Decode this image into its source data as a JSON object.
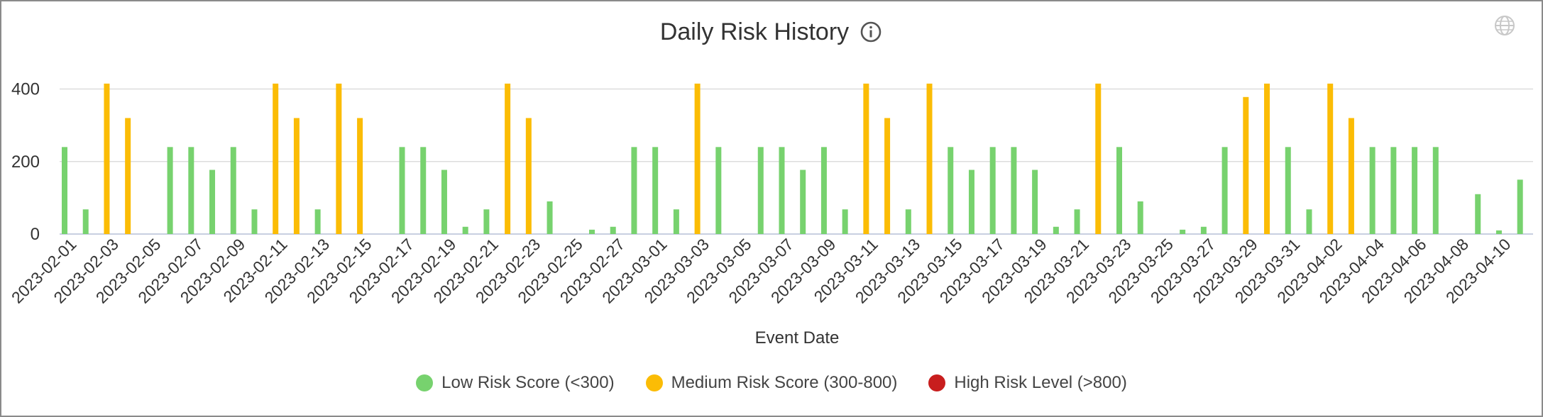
{
  "title": "Daily Risk History",
  "icons": {
    "title_info": "info-icon",
    "corner": "globe-icon"
  },
  "colors": {
    "low": "#77d26e",
    "medium": "#fbbc05",
    "high": "#c81e1e",
    "grid": "#dddddd",
    "axis": "#c8cfe0",
    "text": "#333333"
  },
  "legend": [
    {
      "label": "Low Risk Score (<300)",
      "color": "#77d26e"
    },
    {
      "label": "Medium Risk Score (300-800)",
      "color": "#fbbc05"
    },
    {
      "label": "High Risk Level (>800)",
      "color": "#c81e1e"
    }
  ],
  "chart_data": {
    "type": "bar",
    "title": "Daily Risk History",
    "xlabel": "Event Date",
    "ylabel": "",
    "ylim": [
      0,
      450
    ],
    "yticks": [
      0,
      200,
      400
    ],
    "grid": true,
    "legend_position": "bottom",
    "x_tick_labels": [
      "2023-02-01",
      "2023-02-03",
      "2023-02-05",
      "2023-02-07",
      "2023-02-09",
      "2023-02-11",
      "2023-02-13",
      "2023-02-15",
      "2023-02-17",
      "2023-02-19",
      "2023-02-21",
      "2023-02-23",
      "2023-02-25",
      "2023-02-27",
      "2023-03-01",
      "2023-03-03",
      "2023-03-05",
      "2023-03-07",
      "2023-03-09",
      "2023-03-11",
      "2023-03-13",
      "2023-03-15",
      "2023-03-17",
      "2023-03-19",
      "2023-03-21",
      "2023-03-23",
      "2023-03-25",
      "2023-03-27",
      "2023-03-29",
      "2023-03-31",
      "2023-04-02",
      "2023-04-04",
      "2023-04-06",
      "2023-04-08",
      "2023-04-10"
    ],
    "categories": [
      "2023-02-01",
      "2023-02-02",
      "2023-02-03",
      "2023-02-04",
      "2023-02-05",
      "2023-02-06",
      "2023-02-07",
      "2023-02-08",
      "2023-02-09",
      "2023-02-10",
      "2023-02-11",
      "2023-02-12",
      "2023-02-13",
      "2023-02-14",
      "2023-02-15",
      "2023-02-16",
      "2023-02-17",
      "2023-02-18",
      "2023-02-19",
      "2023-02-20",
      "2023-02-21",
      "2023-02-22",
      "2023-02-23",
      "2023-02-24",
      "2023-02-25",
      "2023-02-26",
      "2023-02-27",
      "2023-02-28",
      "2023-03-01",
      "2023-03-02",
      "2023-03-03",
      "2023-03-04",
      "2023-03-05",
      "2023-03-06",
      "2023-03-07",
      "2023-03-08",
      "2023-03-09",
      "2023-03-10",
      "2023-03-11",
      "2023-03-12",
      "2023-03-13",
      "2023-03-14",
      "2023-03-15",
      "2023-03-16",
      "2023-03-17",
      "2023-03-18",
      "2023-03-19",
      "2023-03-20",
      "2023-03-21",
      "2023-03-22",
      "2023-03-23",
      "2023-03-24",
      "2023-03-25",
      "2023-03-26",
      "2023-03-27",
      "2023-03-28",
      "2023-03-29",
      "2023-03-30",
      "2023-03-31",
      "2023-04-01",
      "2023-04-02",
      "2023-04-03",
      "2023-04-04",
      "2023-04-05",
      "2023-04-06",
      "2023-04-07",
      "2023-04-08",
      "2023-04-09",
      "2023-04-10",
      "2023-04-11"
    ],
    "series": [
      {
        "name": "Low Risk Score (<300)",
        "values": [
          240,
          68,
          0,
          0,
          0,
          240,
          240,
          177,
          240,
          68,
          0,
          0,
          68,
          0,
          0,
          0,
          240,
          240,
          177,
          20,
          68,
          0,
          0,
          90,
          0,
          12,
          20,
          240,
          240,
          68,
          0,
          240,
          0,
          240,
          240,
          177,
          240,
          68,
          0,
          0,
          68,
          0,
          240,
          177,
          240,
          240,
          177,
          20,
          68,
          0,
          240,
          90,
          0,
          12,
          20,
          240,
          0,
          0,
          240,
          68,
          0,
          0,
          240,
          240,
          240,
          240,
          0,
          110,
          10,
          150
        ]
      },
      {
        "name": "Medium Risk Score (300-800)",
        "values": [
          0,
          0,
          415,
          320,
          0,
          0,
          0,
          0,
          0,
          0,
          415,
          320,
          0,
          415,
          320,
          0,
          0,
          0,
          0,
          0,
          0,
          415,
          320,
          0,
          0,
          0,
          0,
          0,
          0,
          0,
          415,
          0,
          0,
          0,
          0,
          0,
          0,
          0,
          415,
          320,
          0,
          415,
          0,
          0,
          0,
          0,
          0,
          0,
          0,
          415,
          0,
          0,
          0,
          0,
          0,
          0,
          378,
          415,
          0,
          0,
          415,
          320,
          0,
          0,
          0,
          0,
          0,
          0,
          0,
          0
        ]
      },
      {
        "name": "High Risk Level (>800)",
        "values": [
          0,
          0,
          0,
          0,
          0,
          0,
          0,
          0,
          0,
          0,
          0,
          0,
          0,
          0,
          0,
          0,
          0,
          0,
          0,
          0,
          0,
          0,
          0,
          0,
          0,
          0,
          0,
          0,
          0,
          0,
          0,
          0,
          0,
          0,
          0,
          0,
          0,
          0,
          0,
          0,
          0,
          0,
          0,
          0,
          0,
          0,
          0,
          0,
          0,
          0,
          0,
          0,
          0,
          0,
          0,
          0,
          0,
          0,
          0,
          0,
          0,
          0,
          0,
          0,
          0,
          0,
          0,
          0,
          0,
          0
        ]
      }
    ]
  }
}
